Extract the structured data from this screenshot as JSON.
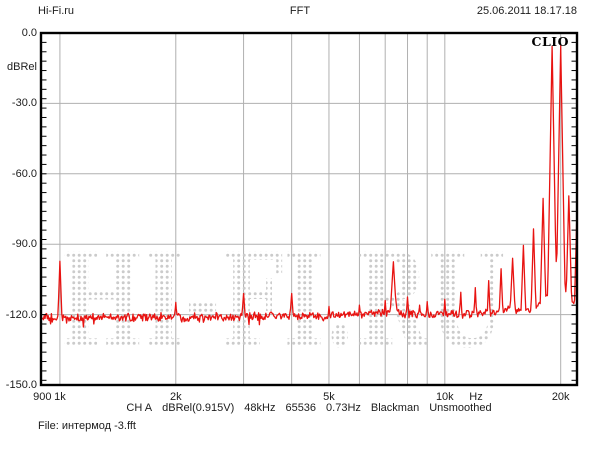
{
  "header": {
    "site": "Hi-Fi.ru",
    "title": "FFT",
    "datetime": "25.06.2011 18.17.18"
  },
  "logo": "CLIO",
  "watermark": "HI-FI.RU",
  "footer": {
    "status_parts": [
      "CH A",
      "dBRel(0.915V)",
      "48kHz",
      "65536",
      "0.73Hz",
      "Blackman",
      "Unsmoothed"
    ],
    "file": "File: интермод -3.fft"
  },
  "style": {
    "grid_color": "#b0b0b0",
    "watermark_color": "#cbcbcb",
    "trace_color": "#e81311",
    "border_color": "#000000",
    "text_color": "#1c1c1c"
  },
  "chart_data": {
    "type": "line",
    "title": "FFT",
    "xlabel": "Hz",
    "ylabel": "dBRel",
    "x_scale": "log",
    "xlim": [
      893,
      22050
    ],
    "ylim": [
      -150,
      0
    ],
    "grid": true,
    "y_ticks": [
      0,
      -30,
      -60,
      -90,
      -120,
      -150
    ],
    "y_tick_labels": [
      "0.0",
      "-30.0",
      "-60.0",
      "-90.0",
      "-120.0",
      "-150.0"
    ],
    "y_gridlines": [
      -30,
      -60,
      -90,
      -120
    ],
    "x_gridlines": [
      1000,
      2000,
      3000,
      4000,
      5000,
      6000,
      7000,
      8000,
      9000,
      10000,
      20000
    ],
    "x_tick_labels": [
      {
        "label": "900",
        "f": 900
      },
      {
        "label": "1k",
        "f": 1000
      },
      {
        "label": "2k",
        "f": 2000
      },
      {
        "label": "5k",
        "f": 5000
      },
      {
        "label": "10k",
        "f": 10000
      },
      {
        "label": "Hz",
        "f": 12050
      },
      {
        "label": "20k",
        "f": 20000
      }
    ],
    "noise_floor_dB": -121,
    "floor_profile": [
      [
        893,
        -121.5
      ],
      [
        2000,
        -121
      ],
      [
        5000,
        -120.5
      ],
      [
        7100,
        -119.5
      ],
      [
        7350,
        -113.5
      ],
      [
        7600,
        -119.5
      ],
      [
        10000,
        -120
      ],
      [
        12000,
        -119.5
      ],
      [
        14000,
        -119
      ],
      [
        14600,
        -117.5
      ],
      [
        15400,
        -118.5
      ],
      [
        16600,
        -117.5
      ],
      [
        17400,
        -116
      ],
      [
        18000,
        -114.5
      ],
      [
        18400,
        -112
      ],
      [
        18700,
        -107.5
      ],
      [
        19000,
        -103.5
      ],
      [
        19350,
        -99.5
      ],
      [
        19500,
        -98.5
      ],
      [
        19650,
        -99.5
      ],
      [
        19900,
        -102
      ],
      [
        20150,
        -103
      ],
      [
        20400,
        -106
      ],
      [
        20700,
        -110
      ],
      [
        21200,
        -113.5
      ],
      [
        21600,
        -115
      ],
      [
        22050,
        -113
      ]
    ],
    "peaks": [
      {
        "f": 1000,
        "dB": -97.3,
        "steep": 12
      },
      {
        "f": 2000,
        "dB": -114.8,
        "steep": 6
      },
      {
        "f": 3000,
        "dB": -111,
        "steep": 6
      },
      {
        "f": 4000,
        "dB": -111,
        "steep": 6
      },
      {
        "f": 5000,
        "dB": -116.5,
        "steep": 5
      },
      {
        "f": 6000,
        "dB": -116,
        "steep": 5
      },
      {
        "f": 7000,
        "dB": -114,
        "steep": 6
      },
      {
        "f": 7350,
        "dB": -97.5,
        "steep": 7
      },
      {
        "f": 8000,
        "dB": -112.5,
        "steep": 6
      },
      {
        "f": 8600,
        "dB": -116,
        "steep": 5
      },
      {
        "f": 9000,
        "dB": -114.5,
        "steep": 6
      },
      {
        "f": 10000,
        "dB": -113.5,
        "steep": 7
      },
      {
        "f": 11000,
        "dB": -110.5,
        "steep": 8
      },
      {
        "f": 12000,
        "dB": -108.5,
        "steep": 9
      },
      {
        "f": 13000,
        "dB": -105.5,
        "steep": 10
      },
      {
        "f": 14000,
        "dB": -100.5,
        "steep": 10
      },
      {
        "f": 15000,
        "dB": -96,
        "steep": 9
      },
      {
        "f": 16000,
        "dB": -90.5,
        "steep": 12
      },
      {
        "f": 17000,
        "dB": -83.5,
        "steep": 14
      },
      {
        "f": 18000,
        "dB": -70.5,
        "steep": 16
      },
      {
        "f": 19000,
        "dB": -5.6,
        "steep": 24
      },
      {
        "f": 20000,
        "dB": -5.4,
        "steep": 24
      },
      {
        "f": 21000,
        "dB": -69.4,
        "steep": 16
      },
      {
        "f": 22000,
        "dB": -81.4,
        "steep": 16
      }
    ],
    "trace_color": "#e81311"
  }
}
